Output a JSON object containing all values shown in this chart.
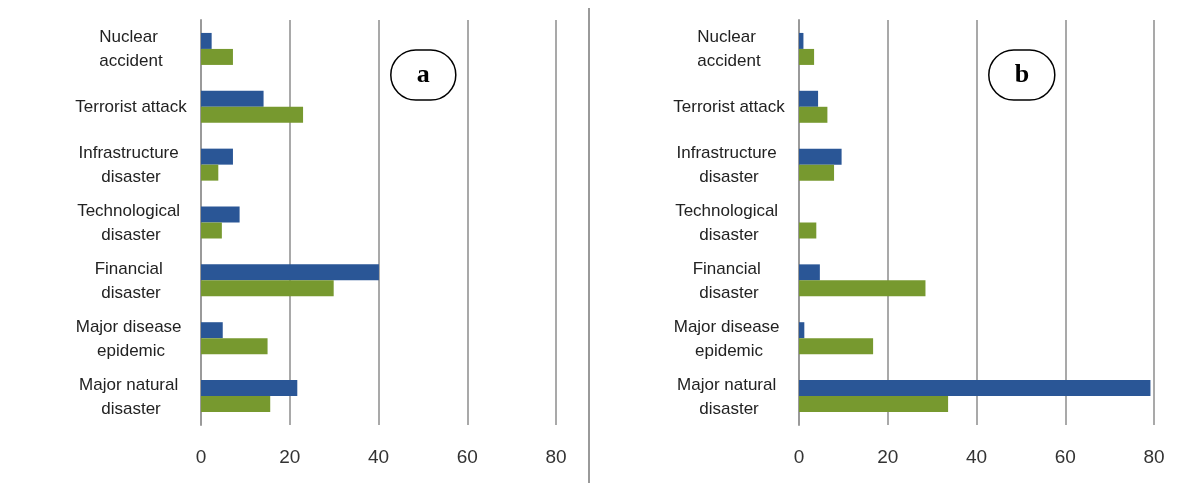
{
  "chart_data": [
    {
      "type": "bar",
      "title": "a",
      "orientation": "horizontal",
      "categories": [
        "Nuclear accident",
        "Terrorist attack",
        "Infrastructure disaster",
        "Technological disaster",
        "Financial disaster",
        "Major disease epidemic",
        "Major natural disaster"
      ],
      "series": [
        {
          "color": "#2a5696",
          "values": [
            2.4,
            14.1,
            7.2,
            8.7,
            40.1,
            4.9,
            21.7
          ]
        },
        {
          "color": "#77992f",
          "values": [
            7.2,
            23,
            3.9,
            4.7,
            29.9,
            15,
            15.6
          ]
        }
      ],
      "xlim": [
        0,
        80
      ],
      "xticks": [
        0,
        20,
        40,
        60,
        80
      ],
      "grid": "x"
    },
    {
      "type": "bar",
      "title": "b",
      "orientation": "horizontal",
      "categories": [
        "Nuclear accident",
        "Terrorist attack",
        "Infrastructure disaster",
        "Technological disaster",
        "Financial disaster",
        "Major disease epidemic",
        "Major natural disaster"
      ],
      "series": [
        {
          "color": "#2a5696",
          "values": [
            1,
            4.3,
            9.6,
            0,
            4.7,
            1.2,
            79.2
          ]
        },
        {
          "color": "#77992f",
          "values": [
            3.4,
            6.4,
            7.9,
            3.9,
            28.5,
            16.7,
            33.6
          ]
        }
      ],
      "xlim": [
        0,
        80
      ],
      "xticks": [
        0,
        20,
        40,
        60,
        80
      ],
      "grid": "x"
    }
  ]
}
